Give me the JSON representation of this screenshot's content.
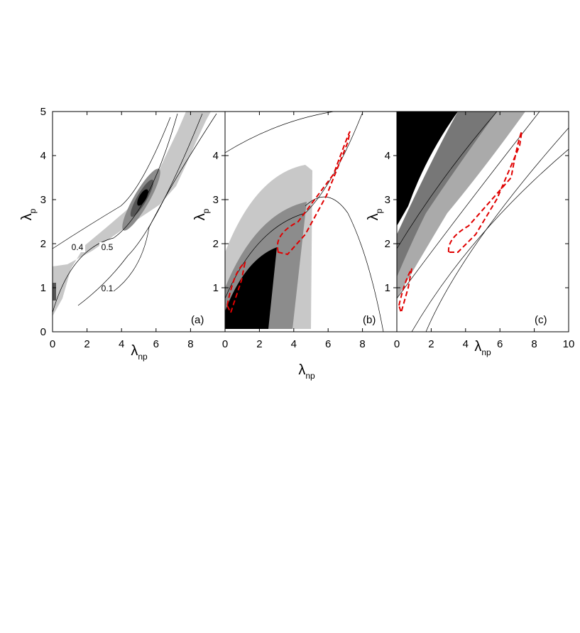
{
  "chart_data": [
    {
      "type": "contour",
      "panel": "(a)",
      "xlabel": "λ",
      "xlabel_sub": "np",
      "ylabel": "λ",
      "ylabel_sub": "p",
      "xlim": [
        0,
        10
      ],
      "ylim": [
        0,
        5
      ],
      "xticks": [
        0,
        2,
        4,
        6,
        8
      ],
      "yticks": [
        0,
        1,
        2,
        3,
        4,
        5
      ],
      "annotations": [
        "0.4",
        "0.5",
        "0.1"
      ]
    },
    {
      "type": "contour",
      "panel": "(b)",
      "xlabel": "λ",
      "xlabel_sub": "np",
      "ylabel": "λ",
      "ylabel_sub": "p",
      "xlim": [
        0,
        10
      ],
      "ylim": [
        0,
        5
      ],
      "xticks": [
        0,
        2,
        4,
        6,
        8
      ],
      "yticks": [
        1,
        2,
        3,
        4
      ]
    },
    {
      "type": "contour",
      "panel": "(c)",
      "xlabel": "λ",
      "xlabel_sub": "np",
      "ylabel": "λ",
      "ylabel_sub": "p",
      "xlim": [
        0,
        10
      ],
      "ylim": [
        0,
        5
      ],
      "xticks": [
        0,
        2,
        4,
        6,
        8,
        10
      ],
      "yticks": [
        1,
        2,
        3,
        4
      ]
    }
  ]
}
